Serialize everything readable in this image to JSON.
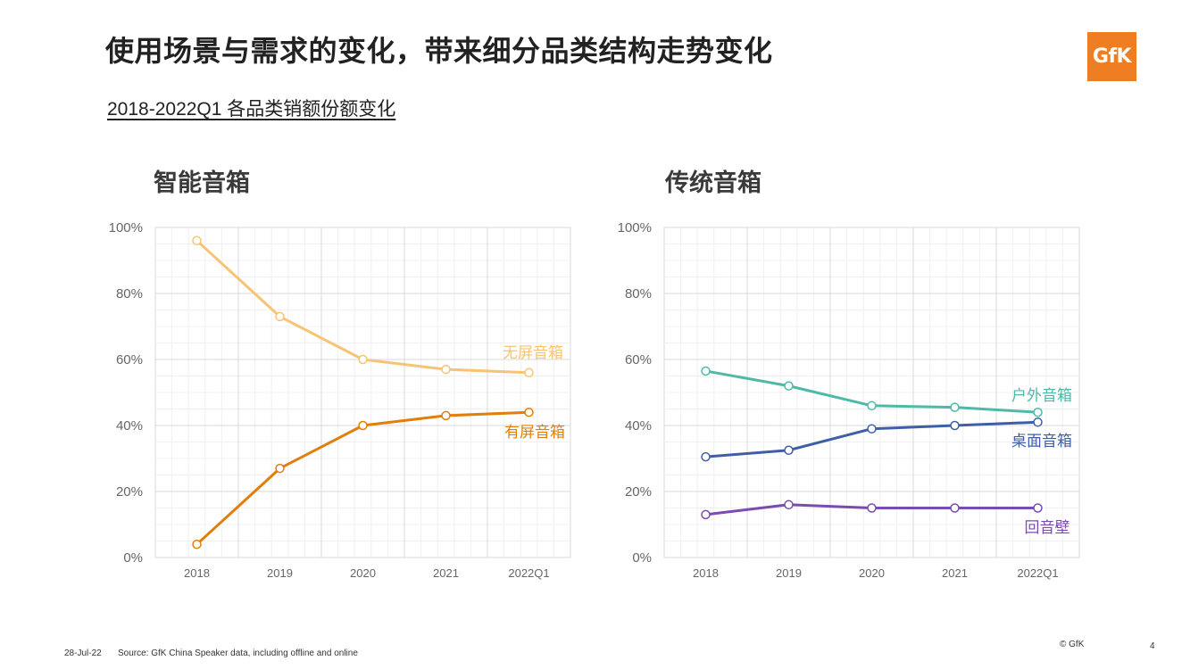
{
  "title": "使用场景与需求的变化，带来细分品类结构走势变化",
  "logo_text": "GfK",
  "subtitle": "2018-2022Q1 各品类销额份额变化",
  "footer": {
    "date": "28-Jul-22",
    "source": "Source: GfK China Speaker data, including offline and online",
    "copyright": "© GfK",
    "page": "4"
  },
  "chart_data": [
    {
      "type": "line",
      "title": "智能音箱",
      "categories": [
        "2018",
        "2019",
        "2020",
        "2021",
        "2022Q1"
      ],
      "y_ticks": [
        "0%",
        "20%",
        "40%",
        "60%",
        "80%",
        "100%"
      ],
      "ylim": [
        0,
        100
      ],
      "series": [
        {
          "name": "无屏音箱",
          "color": "#f7c475",
          "values": [
            96,
            73,
            60,
            57,
            56
          ]
        },
        {
          "name": "有屏音箱",
          "color": "#e07f0a",
          "values": [
            4,
            27,
            40,
            43,
            44
          ]
        }
      ]
    },
    {
      "type": "line",
      "title": "传统音箱",
      "categories": [
        "2018",
        "2019",
        "2020",
        "2021",
        "2022Q1"
      ],
      "y_ticks": [
        "0%",
        "20%",
        "40%",
        "60%",
        "80%",
        "100%"
      ],
      "ylim": [
        0,
        100
      ],
      "series": [
        {
          "name": "户外音箱",
          "color": "#4fb8a7",
          "values": [
            56.5,
            52,
            46,
            45.5,
            44
          ]
        },
        {
          "name": "桌面音箱",
          "color": "#3e5fa8",
          "values": [
            30.5,
            32.5,
            39,
            40,
            41
          ]
        },
        {
          "name": "回音壁",
          "color": "#7c4bb0",
          "values": [
            13,
            16,
            15,
            15,
            15
          ]
        }
      ]
    }
  ]
}
